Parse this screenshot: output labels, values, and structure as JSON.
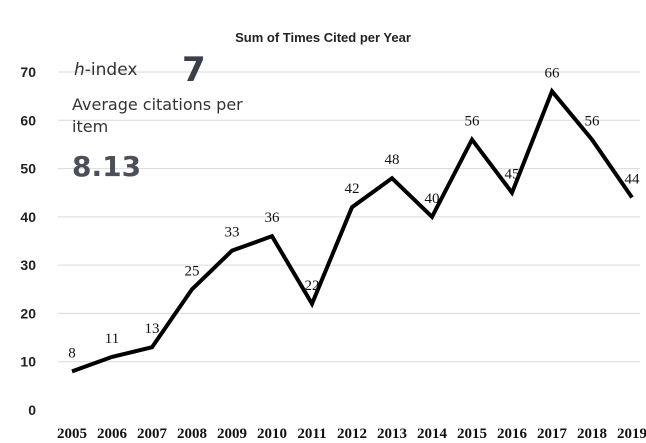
{
  "chart_data": {
    "type": "line",
    "title": "Sum of Times Cited per Year",
    "xlabel": "",
    "ylabel": "",
    "x": [
      "2005",
      "2006",
      "2007",
      "2008",
      "2009",
      "2010",
      "2011",
      "2012",
      "2013",
      "2014",
      "2015",
      "2016",
      "2017",
      "2018",
      "2019"
    ],
    "values": [
      8,
      11,
      13,
      25,
      33,
      36,
      22,
      42,
      48,
      40,
      56,
      45,
      66,
      56,
      44
    ],
    "ylim": [
      0,
      70
    ],
    "yticks": [
      0,
      10,
      20,
      30,
      40,
      50,
      60,
      70
    ],
    "grid": true,
    "line_color": "#000000",
    "gridline_color": "#d9d9d9"
  },
  "metrics": {
    "hindex_prefix": "h",
    "hindex_suffix": "-index",
    "hindex_value": "7",
    "avg_label": "Average citations per item",
    "avg_value": "8.13"
  }
}
